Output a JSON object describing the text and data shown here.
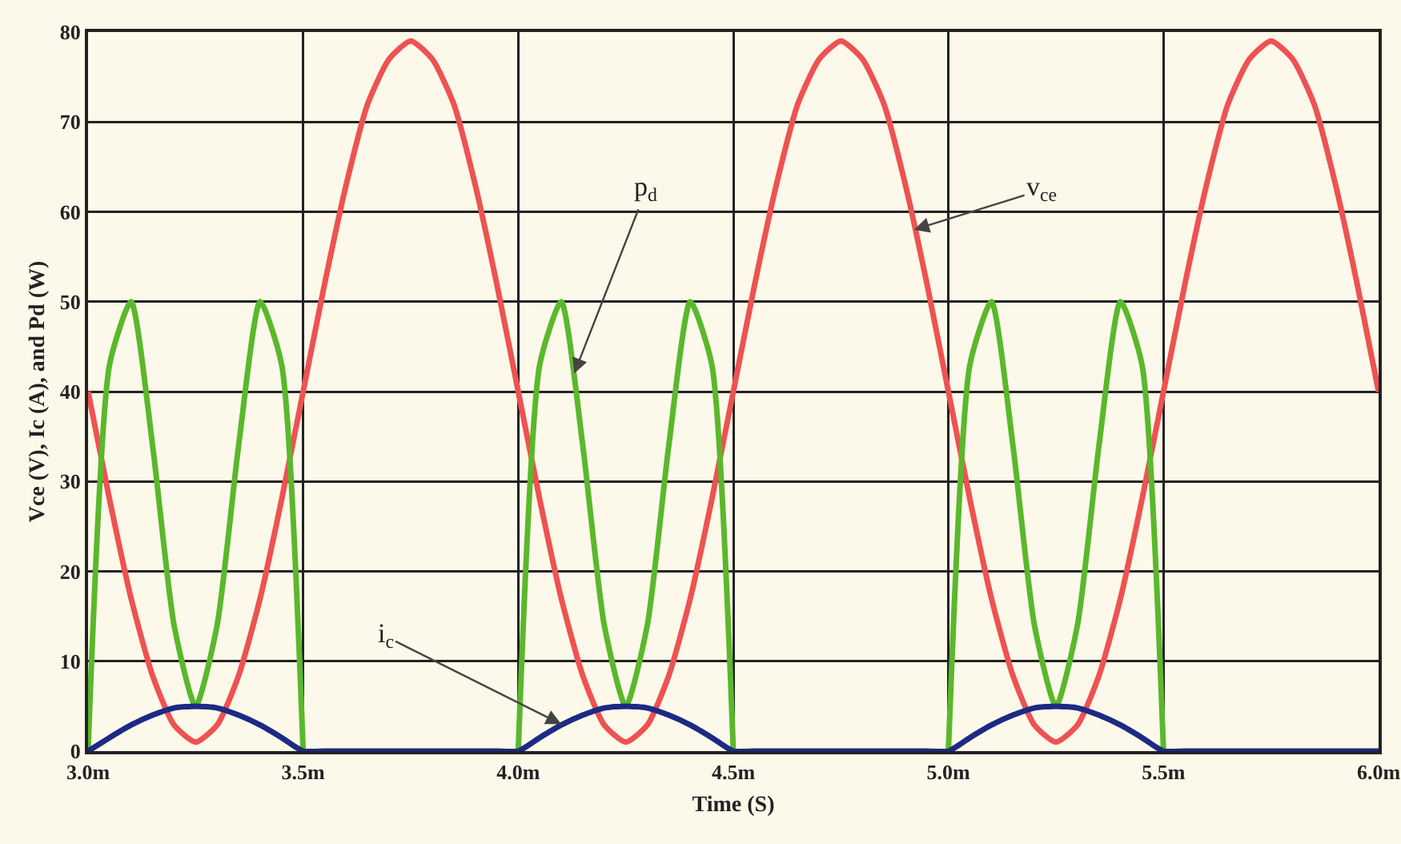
{
  "chart_data": {
    "type": "line",
    "xlabel": "Time (S)",
    "ylabel": "Vce (V), Ic (A), and Pd (W)",
    "x": [
      3,
      3.05,
      3.1,
      3.15,
      3.2,
      3.25,
      3.3,
      3.35,
      3.4,
      3.45,
      3.5,
      3.55,
      3.6,
      3.65,
      3.7,
      3.75,
      3.8,
      3.85,
      3.9,
      3.95,
      4,
      4.05,
      4.1,
      4.15,
      4.2,
      4.25,
      4.3,
      4.35,
      4.4,
      4.45,
      4.5,
      4.55,
      4.6,
      4.65,
      4.7,
      4.75,
      4.8,
      4.85,
      4.9,
      4.95,
      5,
      5.05,
      5.1,
      5.15,
      5.2,
      5.25,
      5.3,
      5.35,
      5.4,
      5.45,
      5.5,
      5.55,
      5.6,
      5.65,
      5.7,
      5.75,
      5.8,
      5.85,
      5.9,
      5.95,
      6
    ],
    "series": [
      {
        "color": "#ee5252",
        "values": [
          40,
          28,
          17,
          8.4,
          2.9,
          1,
          2.9,
          8.4,
          17,
          28,
          40,
          52,
          63,
          72,
          77,
          79,
          77,
          72,
          63,
          52,
          40,
          28,
          17,
          8.4,
          2.9,
          1,
          2.9,
          8.4,
          17,
          28,
          40,
          52,
          63,
          72,
          77,
          79,
          77,
          72,
          63,
          52,
          40,
          28,
          17,
          8.4,
          2.9,
          1,
          2.9,
          8.4,
          17,
          28,
          40,
          52,
          63,
          72,
          77,
          79,
          77,
          72,
          63,
          52,
          40
        ]
      },
      {
        "color": "#5ab82c",
        "values": [
          0,
          43,
          50,
          34,
          14,
          5,
          14,
          34,
          50,
          43,
          0,
          null,
          null,
          null,
          null,
          null,
          null,
          null,
          null,
          null,
          0,
          43,
          50,
          34,
          14,
          5,
          14,
          34,
          50,
          43,
          0,
          null,
          null,
          null,
          null,
          null,
          null,
          null,
          null,
          null,
          0,
          43,
          50,
          34,
          14,
          5,
          14,
          34,
          50,
          43,
          0,
          null,
          null,
          null,
          null,
          null,
          null,
          null,
          null,
          null,
          null
        ]
      },
      {
        "color": "#1c2a84",
        "values": [
          0,
          1.5,
          2.9,
          4,
          4.8,
          5,
          4.8,
          4,
          2.9,
          1.5,
          0,
          0,
          0,
          0,
          0,
          0,
          0,
          0,
          0,
          0,
          0,
          1.5,
          2.9,
          4,
          4.8,
          5,
          4.8,
          4,
          2.9,
          1.5,
          0,
          0,
          0,
          0,
          0,
          0,
          0,
          0,
          0,
          0,
          0,
          1.5,
          2.9,
          4,
          4.8,
          5,
          4.8,
          4,
          2.9,
          1.5,
          0,
          0,
          0,
          0,
          0,
          0,
          0,
          0,
          0,
          0,
          0
        ]
      }
    ],
    "xlim": [
      3,
      6
    ],
    "xticks": [
      {
        "value": 3,
        "label": "3.0m"
      },
      {
        "value": 3.5,
        "label": "3.5m"
      },
      {
        "value": 4,
        "label": "4.0m"
      },
      {
        "value": 4.5,
        "label": "4.5m"
      },
      {
        "value": 5,
        "label": "5.0m"
      },
      {
        "value": 5.5,
        "label": "5.5m"
      },
      {
        "value": 6,
        "label": "6.0m"
      }
    ],
    "ylim": [
      0,
      80
    ],
    "yticks": [
      0,
      10,
      20,
      30,
      40,
      50,
      60,
      70,
      80
    ],
    "grid": true,
    "marker": "none",
    "line_style": "solid",
    "annotations": [
      {
        "text": "p$_{d}$",
        "x": 4.13,
        "y": 42
      },
      {
        "text": "v$_{ce}$",
        "x": 4.92,
        "y": 58
      },
      {
        "text": "i$_{c}$",
        "x": 4.1,
        "y": 3
      }
    ]
  }
}
